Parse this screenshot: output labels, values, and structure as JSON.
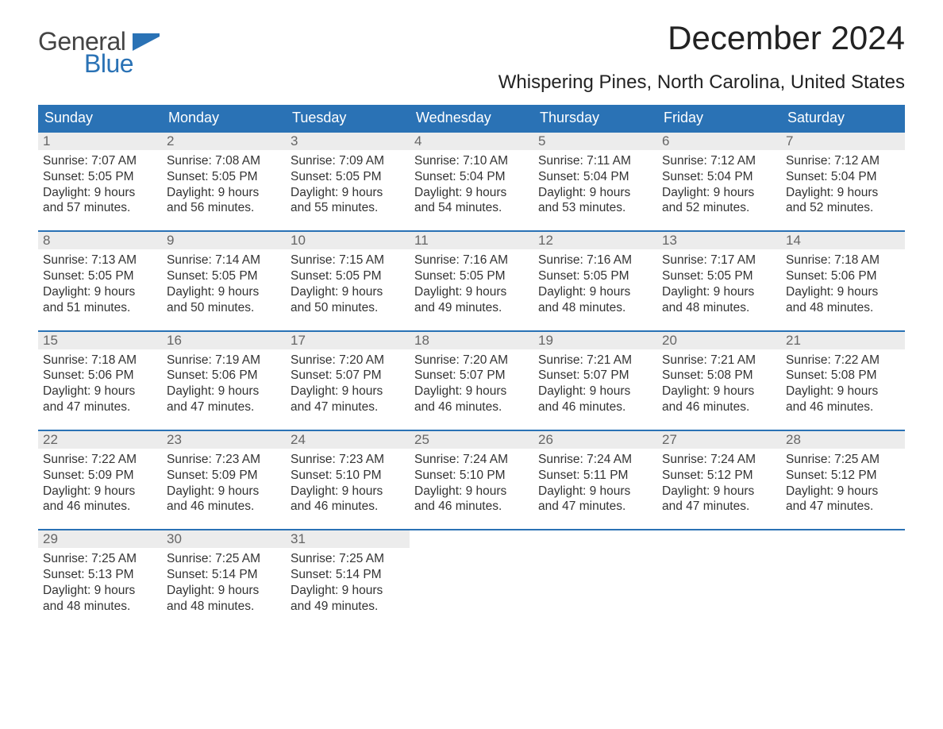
{
  "brand": {
    "line1": "General",
    "line2": "Blue"
  },
  "header": {
    "month_title": "December 2024",
    "location": "Whispering Pines, North Carolina, United States"
  },
  "colors": {
    "accent": "#2a72b5",
    "date_bg": "#ececec",
    "text": "#333333",
    "background": "#ffffff"
  },
  "calendar": {
    "day_names": [
      "Sunday",
      "Monday",
      "Tuesday",
      "Wednesday",
      "Thursday",
      "Friday",
      "Saturday"
    ],
    "weeks": [
      [
        {
          "date": "1",
          "sunrise": "7:07 AM",
          "sunset": "5:05 PM",
          "daylight": "9 hours and 57 minutes."
        },
        {
          "date": "2",
          "sunrise": "7:08 AM",
          "sunset": "5:05 PM",
          "daylight": "9 hours and 56 minutes."
        },
        {
          "date": "3",
          "sunrise": "7:09 AM",
          "sunset": "5:05 PM",
          "daylight": "9 hours and 55 minutes."
        },
        {
          "date": "4",
          "sunrise": "7:10 AM",
          "sunset": "5:04 PM",
          "daylight": "9 hours and 54 minutes."
        },
        {
          "date": "5",
          "sunrise": "7:11 AM",
          "sunset": "5:04 PM",
          "daylight": "9 hours and 53 minutes."
        },
        {
          "date": "6",
          "sunrise": "7:12 AM",
          "sunset": "5:04 PM",
          "daylight": "9 hours and 52 minutes."
        },
        {
          "date": "7",
          "sunrise": "7:12 AM",
          "sunset": "5:04 PM",
          "daylight": "9 hours and 52 minutes."
        }
      ],
      [
        {
          "date": "8",
          "sunrise": "7:13 AM",
          "sunset": "5:05 PM",
          "daylight": "9 hours and 51 minutes."
        },
        {
          "date": "9",
          "sunrise": "7:14 AM",
          "sunset": "5:05 PM",
          "daylight": "9 hours and 50 minutes."
        },
        {
          "date": "10",
          "sunrise": "7:15 AM",
          "sunset": "5:05 PM",
          "daylight": "9 hours and 50 minutes."
        },
        {
          "date": "11",
          "sunrise": "7:16 AM",
          "sunset": "5:05 PM",
          "daylight": "9 hours and 49 minutes."
        },
        {
          "date": "12",
          "sunrise": "7:16 AM",
          "sunset": "5:05 PM",
          "daylight": "9 hours and 48 minutes."
        },
        {
          "date": "13",
          "sunrise": "7:17 AM",
          "sunset": "5:05 PM",
          "daylight": "9 hours and 48 minutes."
        },
        {
          "date": "14",
          "sunrise": "7:18 AM",
          "sunset": "5:06 PM",
          "daylight": "9 hours and 48 minutes."
        }
      ],
      [
        {
          "date": "15",
          "sunrise": "7:18 AM",
          "sunset": "5:06 PM",
          "daylight": "9 hours and 47 minutes."
        },
        {
          "date": "16",
          "sunrise": "7:19 AM",
          "sunset": "5:06 PM",
          "daylight": "9 hours and 47 minutes."
        },
        {
          "date": "17",
          "sunrise": "7:20 AM",
          "sunset": "5:07 PM",
          "daylight": "9 hours and 47 minutes."
        },
        {
          "date": "18",
          "sunrise": "7:20 AM",
          "sunset": "5:07 PM",
          "daylight": "9 hours and 46 minutes."
        },
        {
          "date": "19",
          "sunrise": "7:21 AM",
          "sunset": "5:07 PM",
          "daylight": "9 hours and 46 minutes."
        },
        {
          "date": "20",
          "sunrise": "7:21 AM",
          "sunset": "5:08 PM",
          "daylight": "9 hours and 46 minutes."
        },
        {
          "date": "21",
          "sunrise": "7:22 AM",
          "sunset": "5:08 PM",
          "daylight": "9 hours and 46 minutes."
        }
      ],
      [
        {
          "date": "22",
          "sunrise": "7:22 AM",
          "sunset": "5:09 PM",
          "daylight": "9 hours and 46 minutes."
        },
        {
          "date": "23",
          "sunrise": "7:23 AM",
          "sunset": "5:09 PM",
          "daylight": "9 hours and 46 minutes."
        },
        {
          "date": "24",
          "sunrise": "7:23 AM",
          "sunset": "5:10 PM",
          "daylight": "9 hours and 46 minutes."
        },
        {
          "date": "25",
          "sunrise": "7:24 AM",
          "sunset": "5:10 PM",
          "daylight": "9 hours and 46 minutes."
        },
        {
          "date": "26",
          "sunrise": "7:24 AM",
          "sunset": "5:11 PM",
          "daylight": "9 hours and 47 minutes."
        },
        {
          "date": "27",
          "sunrise": "7:24 AM",
          "sunset": "5:12 PM",
          "daylight": "9 hours and 47 minutes."
        },
        {
          "date": "28",
          "sunrise": "7:25 AM",
          "sunset": "5:12 PM",
          "daylight": "9 hours and 47 minutes."
        }
      ],
      [
        {
          "date": "29",
          "sunrise": "7:25 AM",
          "sunset": "5:13 PM",
          "daylight": "9 hours and 48 minutes."
        },
        {
          "date": "30",
          "sunrise": "7:25 AM",
          "sunset": "5:14 PM",
          "daylight": "9 hours and 48 minutes."
        },
        {
          "date": "31",
          "sunrise": "7:25 AM",
          "sunset": "5:14 PM",
          "daylight": "9 hours and 49 minutes."
        },
        null,
        null,
        null,
        null
      ]
    ],
    "labels": {
      "sunrise": "Sunrise:",
      "sunset": "Sunset:",
      "daylight": "Daylight:"
    }
  }
}
